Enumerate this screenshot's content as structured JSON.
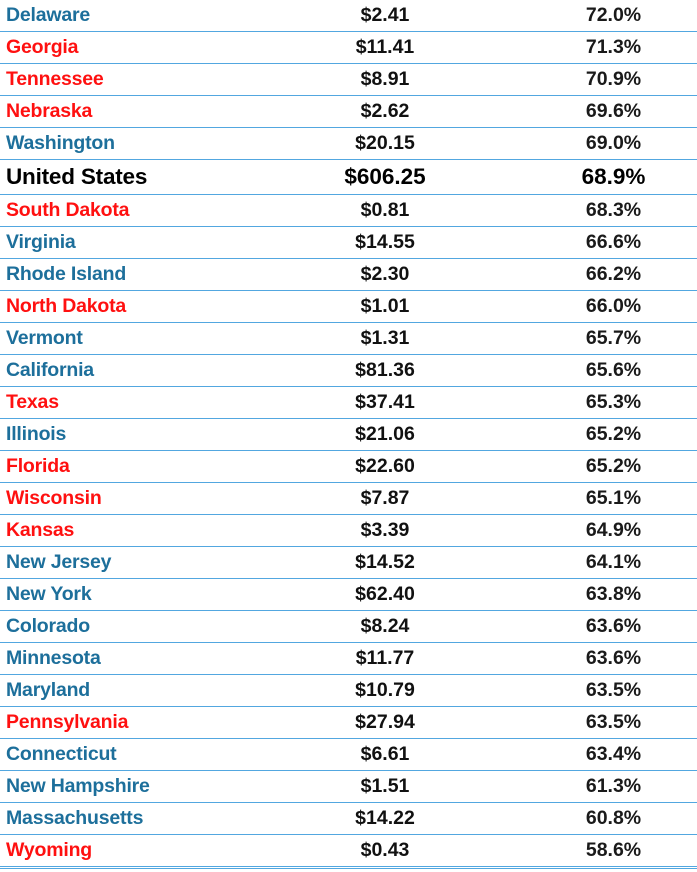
{
  "colors": {
    "blue_state": "#1d6f9b",
    "red_state": "#ff1010",
    "total": "#000000",
    "grid_line": "#52a7e0"
  },
  "rows": [
    {
      "state": "Delaware",
      "amount": "$2.41",
      "percent": "72.0%",
      "party": "blue"
    },
    {
      "state": "Georgia",
      "amount": "$11.41",
      "percent": "71.3%",
      "party": "red"
    },
    {
      "state": "Tennessee",
      "amount": "$8.91",
      "percent": "70.9%",
      "party": "red"
    },
    {
      "state": "Nebraska",
      "amount": "$2.62",
      "percent": "69.6%",
      "party": "red"
    },
    {
      "state": "Washington",
      "amount": "$20.15",
      "percent": "69.0%",
      "party": "blue"
    },
    {
      "state": "United States",
      "amount": "$606.25",
      "percent": "68.9%",
      "party": "total"
    },
    {
      "state": "South Dakota",
      "amount": "$0.81",
      "percent": "68.3%",
      "party": "red"
    },
    {
      "state": "Virginia",
      "amount": "$14.55",
      "percent": "66.6%",
      "party": "blue"
    },
    {
      "state": "Rhode Island",
      "amount": "$2.30",
      "percent": "66.2%",
      "party": "blue"
    },
    {
      "state": "North Dakota",
      "amount": "$1.01",
      "percent": "66.0%",
      "party": "red"
    },
    {
      "state": "Vermont",
      "amount": "$1.31",
      "percent": "65.7%",
      "party": "blue"
    },
    {
      "state": "California",
      "amount": "$81.36",
      "percent": "65.6%",
      "party": "blue"
    },
    {
      "state": "Texas",
      "amount": "$37.41",
      "percent": "65.3%",
      "party": "red"
    },
    {
      "state": "Illinois",
      "amount": "$21.06",
      "percent": "65.2%",
      "party": "blue"
    },
    {
      "state": "Florida",
      "amount": "$22.60",
      "percent": "65.2%",
      "party": "red"
    },
    {
      "state": "Wisconsin",
      "amount": "$7.87",
      "percent": "65.1%",
      "party": "red"
    },
    {
      "state": "Kansas",
      "amount": "$3.39",
      "percent": "64.9%",
      "party": "red"
    },
    {
      "state": "New Jersey",
      "amount": "$14.52",
      "percent": "64.1%",
      "party": "blue"
    },
    {
      "state": "New York",
      "amount": "$62.40",
      "percent": "63.8%",
      "party": "blue"
    },
    {
      "state": "Colorado",
      "amount": "$8.24",
      "percent": "63.6%",
      "party": "blue"
    },
    {
      "state": "Minnesota",
      "amount": "$11.77",
      "percent": "63.6%",
      "party": "blue"
    },
    {
      "state": "Maryland",
      "amount": "$10.79",
      "percent": "63.5%",
      "party": "blue"
    },
    {
      "state": "Pennsylvania",
      "amount": "$27.94",
      "percent": "63.5%",
      "party": "red"
    },
    {
      "state": "Connecticut",
      "amount": "$6.61",
      "percent": "63.4%",
      "party": "blue"
    },
    {
      "state": "New Hampshire",
      "amount": "$1.51",
      "percent": "61.3%",
      "party": "blue"
    },
    {
      "state": "Massachusetts",
      "amount": "$14.22",
      "percent": "60.8%",
      "party": "blue"
    },
    {
      "state": "Wyoming",
      "amount": "$0.43",
      "percent": "58.6%",
      "party": "red"
    }
  ]
}
